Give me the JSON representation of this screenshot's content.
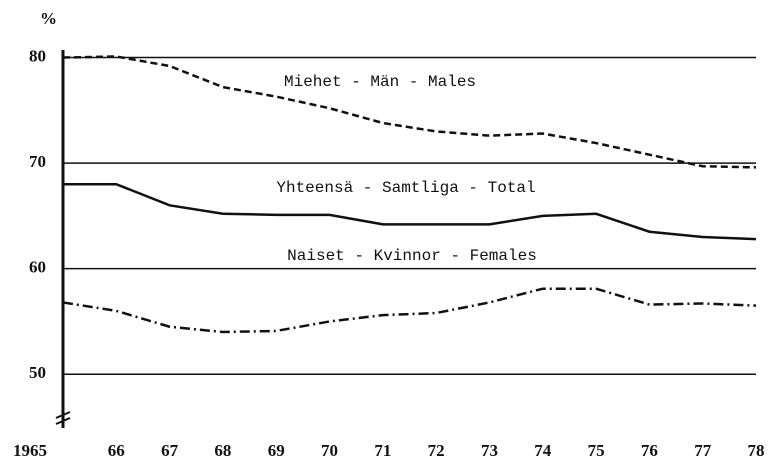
{
  "chart_data": {
    "type": "line",
    "y_label": "%",
    "x": [
      1965,
      1966,
      1967,
      1968,
      1969,
      1970,
      1971,
      1972,
      1973,
      1974,
      1975,
      1976,
      1977,
      1978
    ],
    "xlim": [
      1965,
      1978
    ],
    "xticks": [
      {
        "value": 1965,
        "label": "1965"
      },
      {
        "value": 1966,
        "label": "66"
      },
      {
        "value": 1967,
        "label": "67"
      },
      {
        "value": 1968,
        "label": "68"
      },
      {
        "value": 1969,
        "label": "69"
      },
      {
        "value": 1970,
        "label": "70"
      },
      {
        "value": 1971,
        "label": "71"
      },
      {
        "value": 1972,
        "label": "72"
      },
      {
        "value": 1973,
        "label": "73"
      },
      {
        "value": 1974,
        "label": "74"
      },
      {
        "value": 1975,
        "label": "75"
      },
      {
        "value": 1976,
        "label": "76"
      },
      {
        "value": 1977,
        "label": "77"
      },
      {
        "value": 1978,
        "label": "78"
      }
    ],
    "ylim": [
      45,
      81
    ],
    "yticks": [
      50,
      60,
      70,
      80
    ],
    "grid": true,
    "series": [
      {
        "name": "Miehet - Män - Males",
        "color": "#111",
        "style": "dashed",
        "values": [
          80,
          80.1,
          79.2,
          77.2,
          76.3,
          75.2,
          73.8,
          73,
          72.6,
          72.8,
          71.9,
          70.8,
          69.7,
          69.6
        ]
      },
      {
        "name": "Yhteensä - Samtliga - Total",
        "color": "#111",
        "style": "solid",
        "values": [
          68,
          68,
          66,
          65.2,
          65.1,
          65.1,
          64.2,
          64.2,
          64.2,
          65,
          65.2,
          63.5,
          63,
          62.8
        ]
      },
      {
        "name": "Naiset - Kvinnor - Females",
        "color": "#111",
        "style": "dashdot",
        "values": [
          56.8,
          56,
          54.5,
          54,
          54.1,
          55,
          55.6,
          55.8,
          56.8,
          58.1,
          58.1,
          56.6,
          56.7,
          56.5
        ]
      }
    ]
  }
}
